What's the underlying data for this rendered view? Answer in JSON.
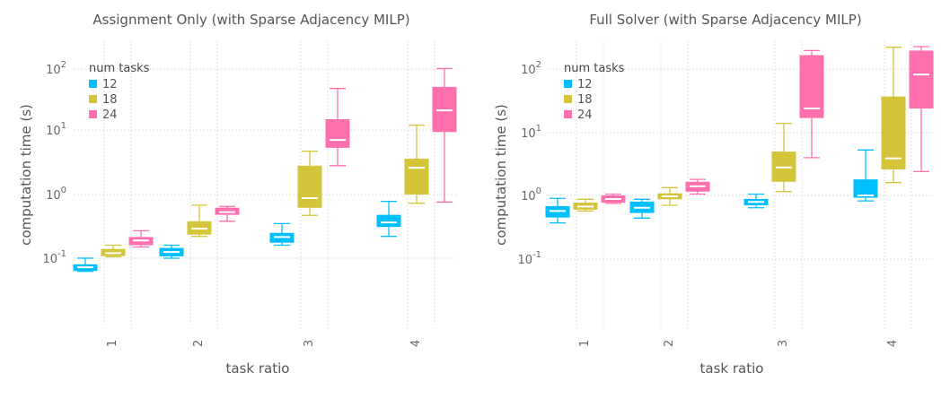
{
  "figure": {
    "legend_title": "num tasks",
    "xlabel": "task ratio",
    "ylabel": "computation time (s)"
  },
  "colors": {
    "12": "#00bfff",
    "18": "#d4c43a",
    "24": "#ff6ead"
  },
  "chart_data": [
    {
      "type": "box",
      "title": "Assignment Only (with Sparse Adjacency MILP)",
      "xlabel": "task ratio",
      "ylabel": "computation time (s)",
      "yscale": "log",
      "ylim": [
        0.01,
        300
      ],
      "y_ticks": [
        "10^-1",
        "10^0",
        "10^1",
        "10^2"
      ],
      "categories": [
        "1",
        "2",
        "3",
        "4"
      ],
      "legend": {
        "title": "num tasks",
        "placement": "top-left"
      },
      "grid": true,
      "series": [
        {
          "name": "12",
          "boxes": [
            {
              "x": "1",
              "whislo": 0.062,
              "q1": 0.063,
              "med": 0.072,
              "q3": 0.08,
              "whishi": 0.1
            },
            {
              "x": "2",
              "whislo": 0.1,
              "q1": 0.107,
              "med": 0.125,
              "q3": 0.145,
              "whishi": 0.16
            },
            {
              "x": "3",
              "whislo": 0.16,
              "q1": 0.175,
              "med": 0.215,
              "q3": 0.25,
              "whishi": 0.35
            },
            {
              "x": "4",
              "whislo": 0.22,
              "q1": 0.31,
              "med": 0.365,
              "q3": 0.48,
              "whishi": 0.78
            }
          ]
        },
        {
          "name": "18",
          "boxes": [
            {
              "x": "1",
              "whislo": 0.105,
              "q1": 0.108,
              "med": 0.12,
              "q3": 0.14,
              "whishi": 0.16
            },
            {
              "x": "2",
              "whislo": 0.22,
              "q1": 0.235,
              "med": 0.29,
              "q3": 0.38,
              "whishi": 0.68
            },
            {
              "x": "3",
              "whislo": 0.47,
              "q1": 0.62,
              "med": 0.88,
              "q3": 2.8,
              "whishi": 4.7
            },
            {
              "x": "4",
              "whislo": 0.73,
              "q1": 1.0,
              "med": 2.6,
              "q3": 3.6,
              "whishi": 12.0
            }
          ]
        },
        {
          "name": "24",
          "boxes": [
            {
              "x": "1",
              "whislo": 0.15,
              "q1": 0.16,
              "med": 0.19,
              "q3": 0.215,
              "whishi": 0.27
            },
            {
              "x": "2",
              "whislo": 0.38,
              "q1": 0.48,
              "med": 0.53,
              "q3": 0.62,
              "whishi": 0.65
            },
            {
              "x": "3",
              "whislo": 2.8,
              "q1": 5.3,
              "med": 7.0,
              "q3": 15.0,
              "whishi": 48.0
            },
            {
              "x": "4",
              "whislo": 0.76,
              "q1": 9.3,
              "med": 21.0,
              "q3": 51.0,
              "whishi": 102.0
            }
          ]
        }
      ]
    },
    {
      "type": "box",
      "title": "Full Solver (with Sparse Adjacency MILP)",
      "xlabel": "task ratio",
      "ylabel": "computation time (s)",
      "yscale": "log",
      "ylim": [
        0.01,
        300
      ],
      "y_ticks": [
        "10^-1",
        "10^0",
        "10^1",
        "10^2"
      ],
      "categories": [
        "1",
        "2",
        "3",
        "4"
      ],
      "legend": {
        "title": "num tasks",
        "placement": "top-left"
      },
      "grid": true,
      "series": [
        {
          "name": "12",
          "boxes": [
            {
              "x": "1",
              "whislo": 0.37,
              "q1": 0.45,
              "med": 0.57,
              "q3": 0.68,
              "whishi": 0.9
            },
            {
              "x": "2",
              "whislo": 0.44,
              "q1": 0.53,
              "med": 0.64,
              "q3": 0.8,
              "whishi": 0.87
            },
            {
              "x": "3",
              "whislo": 0.64,
              "q1": 0.7,
              "med": 0.79,
              "q3": 0.88,
              "whishi": 1.05
            },
            {
              "x": "4",
              "whislo": 0.82,
              "q1": 0.92,
              "med": 1.0,
              "q3": 1.8,
              "whishi": 5.3
            }
          ]
        },
        {
          "name": "18",
          "boxes": [
            {
              "x": "1",
              "whislo": 0.57,
              "q1": 0.6,
              "med": 0.67,
              "q3": 0.77,
              "whishi": 0.87
            },
            {
              "x": "2",
              "whislo": 0.7,
              "q1": 0.87,
              "med": 0.97,
              "q3": 1.08,
              "whishi": 1.33
            },
            {
              "x": "3",
              "whislo": 1.15,
              "q1": 1.65,
              "med": 2.8,
              "q3": 5.0,
              "whishi": 14.0
            },
            {
              "x": "4",
              "whislo": 1.6,
              "q1": 2.6,
              "med": 3.9,
              "q3": 37.0,
              "whishi": 220.0
            }
          ]
        },
        {
          "name": "24",
          "boxes": [
            {
              "x": "1",
              "whislo": 0.75,
              "q1": 0.77,
              "med": 0.88,
              "q3": 1.0,
              "whishi": 1.05
            },
            {
              "x": "2",
              "whislo": 1.05,
              "q1": 1.15,
              "med": 1.4,
              "q3": 1.65,
              "whishi": 1.8
            },
            {
              "x": "3",
              "whislo": 4.0,
              "q1": 17.0,
              "med": 24.0,
              "q3": 165.0,
              "whishi": 195.0
            },
            {
              "x": "4",
              "whislo": 2.4,
              "q1": 24.0,
              "med": 82.0,
              "q3": 195.0,
              "whishi": 225.0
            }
          ]
        }
      ]
    }
  ]
}
